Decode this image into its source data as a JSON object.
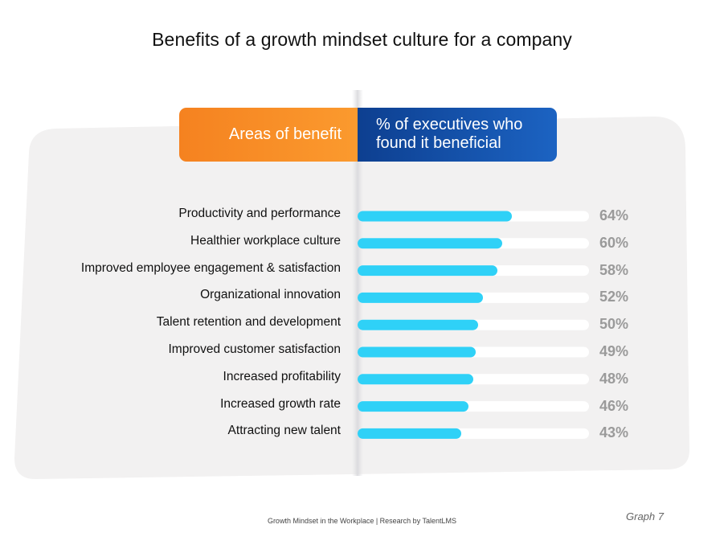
{
  "title": "Benefits of a growth mindset culture for a company",
  "header": {
    "left": "Areas of benefit",
    "right_line1": "% of executives who",
    "right_line2": "found it beneficial"
  },
  "footer": "Growth Mindset in the Workplace | Research by TalentLMS",
  "graph_label": "Graph 7",
  "colors": {
    "bar": "#2fd1f7",
    "track": "#ffffff",
    "panel": "#f2f1f1",
    "header_left": "#f58220",
    "header_right": "#0d3f90",
    "value_text": "#9a9a9a"
  },
  "chart_data": {
    "type": "bar",
    "orientation": "horizontal",
    "categories": [
      "Productivity and performance",
      "Healthier workplace culture",
      "Improved employee engagement & satisfaction",
      "Organizational innovation",
      "Talent retention and development",
      "Improved customer satisfaction",
      "Increased profitability",
      "Increased growth rate",
      "Attracting new talent"
    ],
    "values": [
      64,
      60,
      58,
      52,
      50,
      49,
      48,
      46,
      43
    ],
    "value_labels": [
      "64%",
      "60%",
      "58%",
      "52%",
      "50%",
      "49%",
      "48%",
      "46%",
      "43%"
    ],
    "xlim": [
      0,
      100
    ],
    "grid": false,
    "legend": "none"
  }
}
